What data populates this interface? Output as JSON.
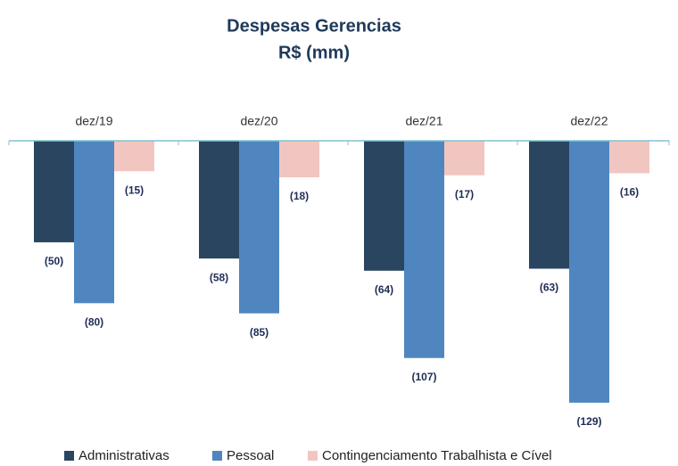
{
  "chart_data": {
    "type": "bar",
    "title": "Despesas Gerencias",
    "subtitle": "R$ (mm)",
    "categories": [
      "dez/19",
      "dez/20",
      "dez/21",
      "dez/22"
    ],
    "ylim": [
      -140,
      0
    ],
    "legend": "bottom",
    "series": [
      {
        "name": "Administrativas",
        "color": "#2a4560",
        "values": [
          -50,
          -58,
          -64,
          -63
        ],
        "value_labels": [
          "(50)",
          "(58)",
          "(64)",
          "(63)"
        ]
      },
      {
        "name": "Pessoal",
        "color": "#4f86c0",
        "values": [
          -80,
          -85,
          -107,
          -129
        ],
        "value_labels": [
          "(80)",
          "(85)",
          "(107)",
          "(129)"
        ]
      },
      {
        "name": "Contingenciamento Trabalhista e Cível",
        "color": "#f2c6c0",
        "values": [
          -15,
          -18,
          -17,
          -16
        ],
        "value_labels": [
          "(15)",
          "(18)",
          "(17)",
          "(16)"
        ]
      }
    ]
  }
}
